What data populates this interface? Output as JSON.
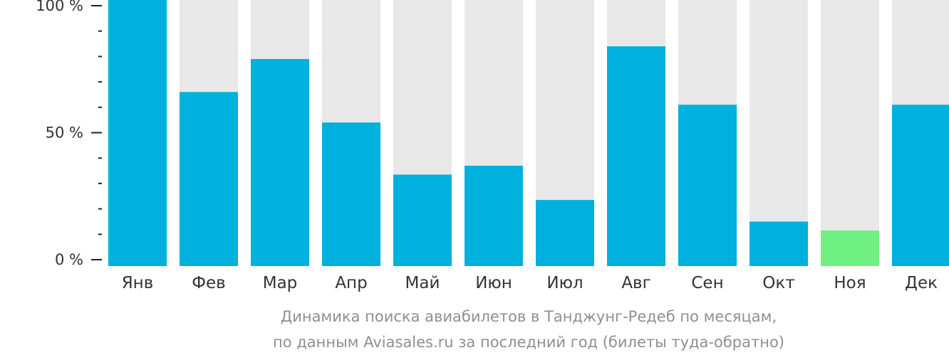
{
  "chart_data": {
    "type": "bar",
    "categories": [
      "Янв",
      "Фев",
      "Мар",
      "Апр",
      "Май",
      "Июн",
      "Июл",
      "Авг",
      "Сен",
      "Окт",
      "Ноя",
      "Дек"
    ],
    "values": [
      100,
      66,
      79,
      54,
      33.5,
      37,
      23.5,
      84,
      61,
      15,
      11.5,
      61
    ],
    "ylim": [
      0,
      100
    ],
    "y_ticks": [
      {
        "value": 0,
        "label": "0 %"
      },
      {
        "value": 50,
        "label": "50 %"
      },
      {
        "value": 100,
        "label": "100 %"
      }
    ],
    "y_minor_ticks": [
      10,
      20,
      30,
      40,
      60,
      70,
      80,
      90
    ],
    "caption_lines": [
      "Динамика поиска авиабилетов в Танджунг-Редеб по месяцам,",
      "по данным Aviasales.ru за последний год (билеты туда-обратно)"
    ],
    "colors": {
      "bar": "#00b0dd",
      "highlight_bar": "#6ef082",
      "background_bar": "#e8e8e8",
      "axis": "#222222",
      "text": "#333333",
      "caption": "#8f8f8f"
    },
    "highlight_index": 10,
    "grid": false
  }
}
